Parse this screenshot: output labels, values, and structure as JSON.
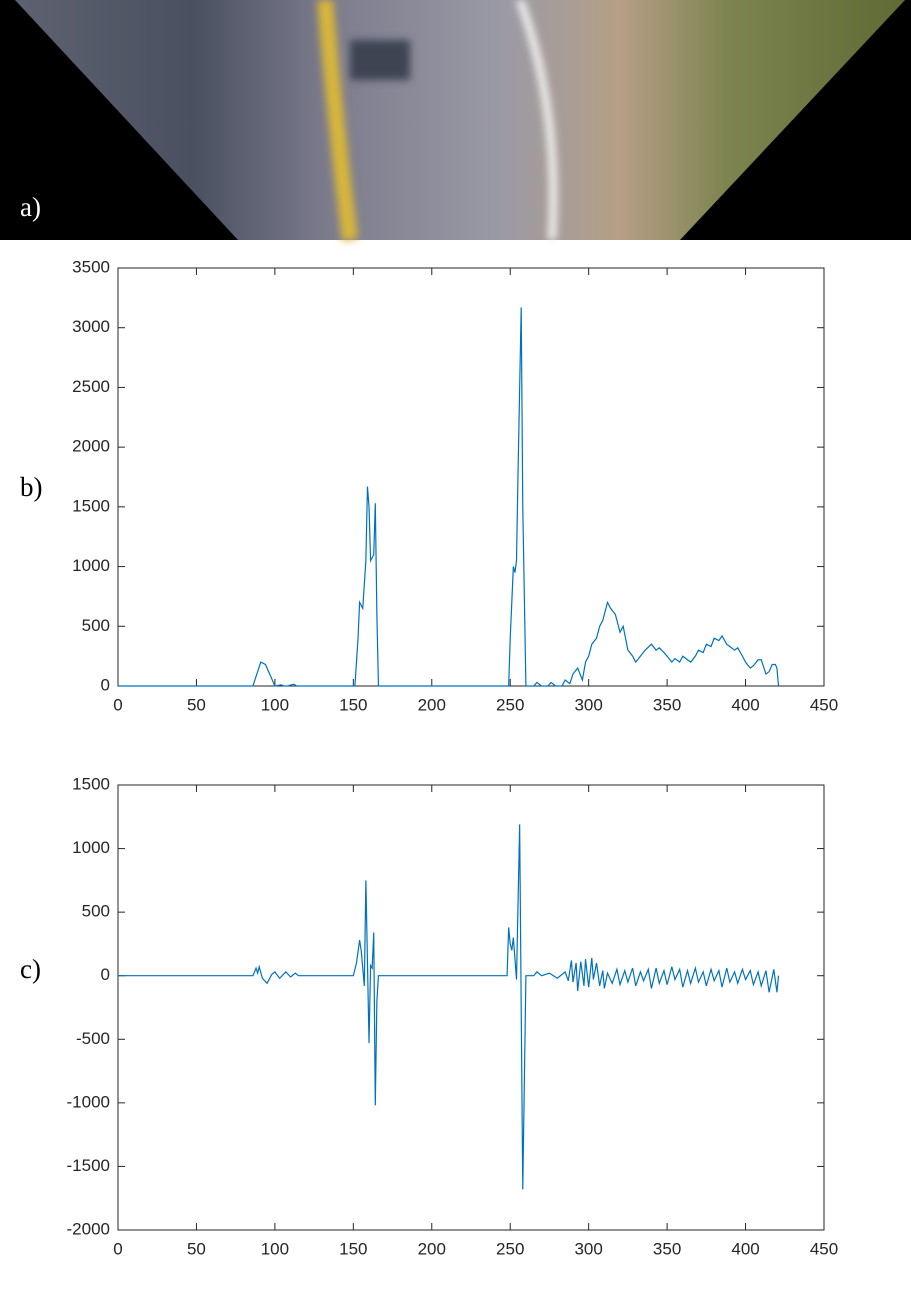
{
  "image_label": "a)",
  "chart_data": [
    {
      "type": "line",
      "label": "b)",
      "color": "#0072bd",
      "x": [
        0,
        86,
        88,
        91,
        94,
        97,
        100,
        104,
        106,
        108,
        112,
        114,
        116,
        151,
        153,
        154,
        156,
        158,
        159,
        160,
        161,
        163,
        164,
        165,
        166,
        249,
        250,
        252,
        253,
        254,
        255,
        257,
        258,
        260,
        265,
        267,
        270,
        274,
        276,
        279,
        283,
        285,
        288,
        290,
        293,
        296,
        298,
        300,
        302,
        305,
        307,
        309,
        312,
        314,
        317,
        320,
        322,
        325,
        328,
        330,
        333,
        336,
        340,
        343,
        345,
        348,
        350,
        353,
        355,
        358,
        360,
        363,
        365,
        368,
        370,
        373,
        375,
        378,
        380,
        383,
        385,
        388,
        390,
        393,
        395,
        398,
        400,
        403,
        405,
        408,
        410,
        413,
        415,
        417,
        419,
        420,
        421
      ],
      "values": [
        0,
        0,
        80,
        200,
        180,
        90,
        0,
        10,
        0,
        0,
        15,
        0,
        0,
        0,
        400,
        700,
        650,
        1050,
        1670,
        1500,
        1050,
        1100,
        1530,
        600,
        0,
        0,
        400,
        1000,
        950,
        1050,
        1800,
        3170,
        1500,
        0,
        0,
        30,
        0,
        0,
        30,
        0,
        0,
        50,
        20,
        100,
        150,
        50,
        200,
        250,
        350,
        400,
        500,
        550,
        700,
        650,
        600,
        450,
        500,
        300,
        250,
        200,
        250,
        300,
        350,
        300,
        320,
        280,
        250,
        200,
        230,
        200,
        250,
        220,
        200,
        250,
        300,
        280,
        350,
        330,
        400,
        380,
        420,
        350,
        330,
        300,
        320,
        250,
        200,
        150,
        170,
        220,
        220,
        100,
        120,
        180,
        180,
        150,
        0
      ],
      "xlim": [
        0,
        450
      ],
      "xticks": [
        0,
        50,
        100,
        150,
        200,
        250,
        300,
        350,
        400,
        450
      ],
      "ylim": [
        0,
        3500
      ],
      "yticks": [
        0,
        500,
        1000,
        1500,
        2000,
        2500,
        3000,
        3500
      ],
      "grid": false
    },
    {
      "type": "line",
      "label": "c)",
      "color": "#0072bd",
      "x": [
        0,
        86,
        88,
        89,
        90,
        92,
        95,
        98,
        100,
        103,
        107,
        110,
        113,
        115,
        150,
        152,
        154,
        155,
        157,
        158,
        160,
        161,
        162,
        163,
        164,
        165,
        166,
        248,
        249,
        250,
        251,
        252,
        254,
        256,
        258,
        260,
        265,
        267,
        270,
        275,
        280,
        285,
        287,
        289,
        290,
        292,
        293,
        295,
        297,
        298,
        300,
        302,
        303,
        305,
        307,
        309,
        310,
        312,
        315,
        318,
        320,
        323,
        325,
        328,
        330,
        333,
        335,
        338,
        340,
        343,
        345,
        348,
        350,
        353,
        355,
        358,
        360,
        363,
        365,
        368,
        370,
        373,
        375,
        378,
        380,
        383,
        385,
        388,
        390,
        393,
        395,
        398,
        400,
        403,
        405,
        408,
        410,
        413,
        415,
        418,
        420,
        421
      ],
      "values": [
        0,
        0,
        60,
        20,
        70,
        -20,
        -60,
        10,
        30,
        -20,
        30,
        -10,
        20,
        0,
        0,
        100,
        280,
        200,
        -80,
        750,
        -530,
        80,
        60,
        340,
        -1020,
        -200,
        0,
        0,
        380,
        250,
        200,
        300,
        -30,
        1190,
        -1680,
        0,
        0,
        30,
        0,
        20,
        -20,
        30,
        -40,
        120,
        -50,
        100,
        -120,
        110,
        -80,
        130,
        -90,
        140,
        -30,
        100,
        -80,
        40,
        -100,
        20,
        -60,
        50,
        -70,
        40,
        -50,
        60,
        -80,
        30,
        -40,
        50,
        -100,
        60,
        -60,
        40,
        -70,
        70,
        -30,
        50,
        -90,
        40,
        -60,
        60,
        -50,
        30,
        -80,
        50,
        -40,
        40,
        -90,
        60,
        -50,
        30,
        -60,
        50,
        -30,
        40,
        -70,
        30,
        -80,
        40,
        -130,
        50,
        -130,
        0
      ],
      "xlim": [
        0,
        450
      ],
      "xticks": [
        0,
        50,
        100,
        150,
        200,
        250,
        300,
        350,
        400,
        450
      ],
      "ylim": [
        -2000,
        1500
      ],
      "yticks": [
        -2000,
        -1500,
        -1000,
        -500,
        0,
        500,
        1000,
        1500
      ],
      "grid": false
    }
  ]
}
